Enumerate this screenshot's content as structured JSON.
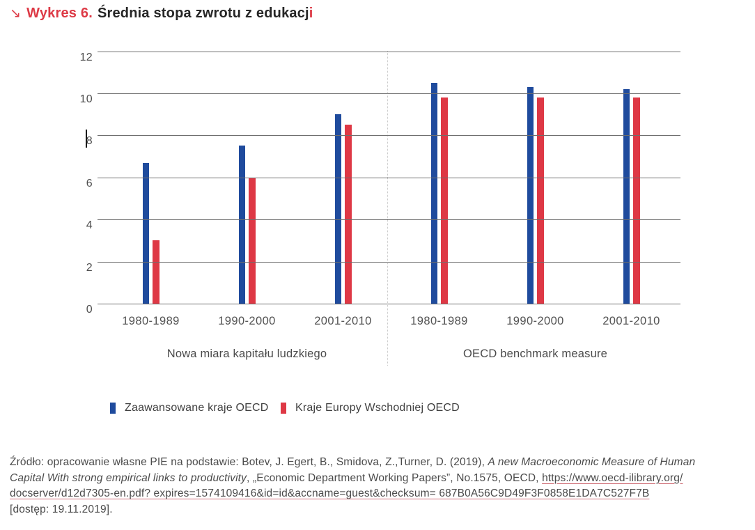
{
  "header": {
    "arrow": "↘",
    "kicker": "Wykres 6.",
    "title_main": "Średnia stopa zwrotu z edukacj",
    "title_red_suffix": "i"
  },
  "chart_data": {
    "type": "bar",
    "title": "Średnia stopa zwrotu z edukacji",
    "ylim": [
      0,
      12
    ],
    "y_ticks": [
      12,
      10,
      8,
      6,
      4,
      2,
      0
    ],
    "grid": "horizontal",
    "legend_position": "bottom",
    "group_sections": [
      {
        "label": "Nowa miara kapitału ludzkiego",
        "category_indexes": [
          0,
          1,
          2
        ]
      },
      {
        "label": "OECD benchmark measure",
        "category_indexes": [
          3,
          4,
          5
        ]
      }
    ],
    "categories": [
      "1980-1989",
      "1990-2000",
      "2001-2010",
      "1980-1989",
      "1990-2000",
      "2001-2010"
    ],
    "series": [
      {
        "name": "Zaawansowane kraje OECD",
        "slug": "advanced-oecd-countries",
        "color": "#1f4b9d",
        "values": [
          6.7,
          7.5,
          9.0,
          10.5,
          10.3,
          10.2
        ]
      },
      {
        "name": "Kraje Europy Wschodniej OECD",
        "slug": "eastern-european-oecd-countries",
        "color": "#de3845",
        "values": [
          3.0,
          6.0,
          8.5,
          9.8,
          9.8,
          9.8
        ]
      }
    ]
  },
  "legend": {
    "items": [
      {
        "label": "Zaawansowane kraje OECD",
        "color": "#1f4b9d"
      },
      {
        "label": "Kraje Europy Wschodniej OECD",
        "color": "#de3845"
      }
    ]
  },
  "source": {
    "lines": [
      [
        {
          "text": "Źródło: opracowanie własne PIE na podstawie: Botev, J. Egert, B., Smidova, Z.,Turner, D. (2019), ",
          "style": "normal"
        },
        {
          "text": "A new Macroeconomic Measure of Human",
          "style": "italic"
        }
      ],
      [
        {
          "text": "Capital With strong empirical links to productivity",
          "style": "italic"
        },
        {
          "text": ", „Economic Department Working Papers”, No.1575, OECD, ",
          "style": "normal"
        },
        {
          "text": "https://www.oecd-ilibrary.org/",
          "style": "link"
        }
      ],
      [
        {
          "text": "docserver/d12d7305-en.pdf? expires=1574109416&id=id&accname=guest&checksum= 687B0A56C9D49F3F0858E1DA7C527F7B",
          "style": "link"
        }
      ],
      [
        {
          "text": "[dostęp: 19.11.2019].",
          "style": "normal"
        }
      ]
    ]
  },
  "colors": {
    "accent_red": "#dd3a46",
    "bar_blue": "#1f4b9d",
    "bar_red": "#de3845",
    "gridline": "#6e6e6e",
    "text_gray": "#4a4a4a",
    "link_underline": "#cf6e77"
  }
}
